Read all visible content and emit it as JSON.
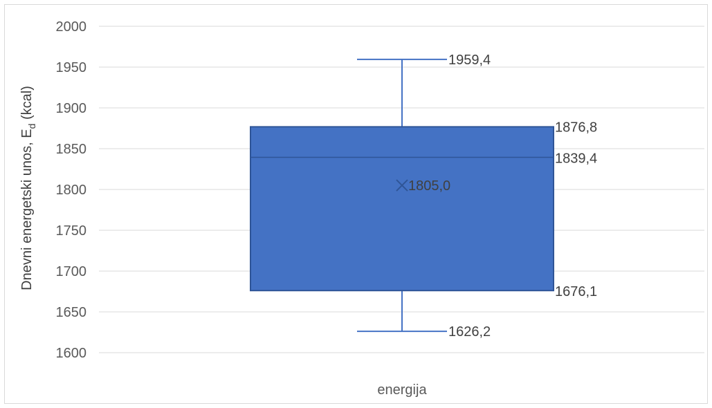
{
  "chart_data": {
    "type": "boxplot",
    "ylabel_main": "Dnevni energetski unos, E",
    "ylabel_sub": "d",
    "ylabel_unit": " (kcal)",
    "categories": [
      "energija"
    ],
    "ylim": [
      1600,
      2000
    ],
    "yticks": [
      "1600",
      "1650",
      "1700",
      "1750",
      "1800",
      "1850",
      "1900",
      "1950",
      "2000"
    ],
    "grid": true,
    "box": {
      "min": 1626.2,
      "q1": 1676.1,
      "median": 1839.4,
      "q3": 1876.8,
      "max": 1959.4,
      "mean": 1805.0
    },
    "labels": {
      "min": "1626,2",
      "q1": "1676,1",
      "median": "1839,4",
      "q3": "1876,8",
      "max": "1959,4",
      "mean": "1805,0"
    },
    "colors": {
      "box_fill": "#4472c4",
      "box_edge": "#2f5597",
      "grid": "#d9d9d9"
    }
  }
}
